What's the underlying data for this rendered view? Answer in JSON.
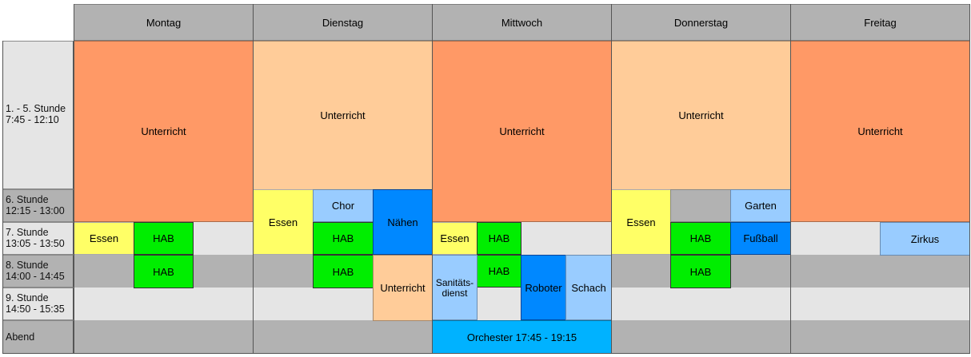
{
  "days": [
    "Montag",
    "Dienstag",
    "Mittwoch",
    "Donnerstag",
    "Freitag"
  ],
  "slots": [
    {
      "label1": "1. - 5. Stunde",
      "label2": "7:45 - 12:10"
    },
    {
      "label1": "6. Stunde",
      "label2": "12:15 - 13:00"
    },
    {
      "label1": "7. Stunde",
      "label2": "13:05 - 13:50"
    },
    {
      "label1": "8. Stunde",
      "label2": "14:00 - 14:45"
    },
    {
      "label1": "9. Stunde",
      "label2": "14:50 - 15:35"
    },
    {
      "label1": "Abend",
      "label2": ""
    }
  ],
  "activities": {
    "unterricht": "Unterricht",
    "essen": "Essen",
    "hab": "HAB",
    "chor": "Chor",
    "naehen": "Nähen",
    "sanitaets": "Sanitäts-\ndienst",
    "roboter": "Roboter",
    "schach": "Schach",
    "garten": "Garten",
    "fussball": "Fußball",
    "zirkus": "Zirkus",
    "orchester": "Orchester 17:45 - 19:15"
  },
  "colors": {
    "header_gray": "#b2b2b2",
    "light_gray": "#e5e5e5",
    "orange": "#ff9966",
    "peach": "#ffcc99",
    "yellow": "#ffff66",
    "green": "#00ee00",
    "light_blue": "#99ccff",
    "blue": "#0088ff",
    "cyan": "#00b2ff"
  }
}
